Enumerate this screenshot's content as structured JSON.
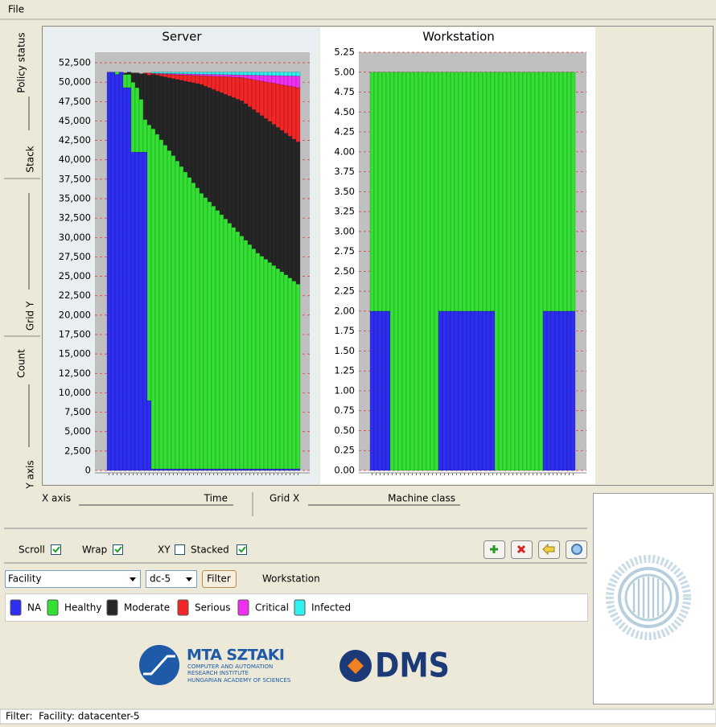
{
  "menu": [
    "File"
  ],
  "side_labels": [
    "Policy status",
    "Stack",
    "Grid Y",
    "Count",
    "Y axis"
  ],
  "controls": {
    "x_axis_label": "X axis",
    "x_axis_value": "Time",
    "grid_x_label": "Grid X",
    "grid_x_value": "Machine class",
    "checkboxes": [
      {
        "label": "Scroll",
        "checked": true
      },
      {
        "label": "Wrap",
        "checked": true
      },
      {
        "label": "XY",
        "checked": false
      },
      {
        "label": "Stacked",
        "checked": true
      }
    ],
    "selects": [
      "Facility",
      "dc-5"
    ],
    "button": "Filter",
    "selection": "Workstation"
  },
  "logos": {
    "mta": "MTA SZTAKI",
    "mta_lines": [
      "COMPUTER AND AUTOMATION",
      "RESEARCH INSTITUTE",
      "HUNGARIAN ACADEMY OF SCIENCES"
    ],
    "dms": "DMS"
  },
  "status": "Filter:  Facility: datacenter-5",
  "chart_data": [
    {
      "type": "bar",
      "stacked": true,
      "grid": true,
      "title": "Server",
      "categories": [
        null,
        null,
        null,
        null,
        null,
        null,
        null,
        null,
        null,
        null,
        null,
        null,
        null,
        null,
        null,
        null,
        null,
        null,
        null,
        null,
        null,
        null,
        null,
        null,
        null,
        null,
        null,
        null,
        null,
        null,
        null,
        null,
        null,
        null,
        null,
        null,
        null,
        null,
        null,
        null,
        null,
        null,
        null,
        null,
        null,
        null,
        null,
        null
      ],
      "ylim": [
        0,
        53850
      ],
      "yticks": [
        0,
        {
          "value": 2500,
          "label": "2,500"
        },
        {
          "value": 5000,
          "label": "5,000"
        },
        {
          "value": 7500,
          "label": "7,500"
        },
        {
          "value": 10000,
          "label": "10,000"
        },
        {
          "value": 12500,
          "label": "12,500"
        },
        {
          "value": 15000,
          "label": "15,000"
        },
        {
          "value": 17500,
          "label": "17,500"
        },
        {
          "value": 20000,
          "label": "20,000"
        },
        {
          "value": 22500,
          "label": "22,500"
        },
        {
          "value": 25000,
          "label": "25,000"
        },
        {
          "value": 27500,
          "label": "27,500"
        },
        {
          "value": 30000,
          "label": "30,000"
        },
        {
          "value": 32500,
          "label": "32,500"
        },
        {
          "value": 35000,
          "label": "35,000"
        },
        {
          "value": 37500,
          "label": "37,500"
        },
        {
          "value": 40000,
          "label": "40,000"
        },
        {
          "value": 42500,
          "label": "42,500"
        },
        {
          "value": 45000,
          "label": "45,000"
        },
        {
          "value": 47500,
          "label": "47,500"
        },
        {
          "value": 50000,
          "label": "50,000"
        },
        {
          "value": 52500,
          "label": "52,500"
        }
      ],
      "series": [
        {
          "name": "NA",
          "color": "#2e2ef2",
          "values": [
            51300,
            51300,
            51000,
            51300,
            49300,
            49300,
            41000,
            41000,
            41000,
            41000,
            9000,
            200,
            200,
            200,
            200,
            200,
            200,
            200,
            200,
            200,
            200,
            200,
            200,
            200,
            200,
            200,
            200,
            200,
            200,
            200,
            200,
            200,
            200,
            200,
            200,
            200,
            200,
            200,
            200,
            200,
            200,
            200,
            200,
            200,
            200,
            200,
            200,
            200
          ]
        },
        {
          "name": "Healthy",
          "color": "#33e033",
          "values": [
            0,
            0,
            300,
            0,
            1700,
            1700,
            9000,
            8300,
            6800,
            4200,
            35500,
            43800,
            43100,
            42400,
            41700,
            41000,
            40350,
            39650,
            38950,
            38250,
            37550,
            36850,
            36200,
            35500,
            34950,
            34400,
            33850,
            33300,
            32750,
            32200,
            31650,
            31100,
            30550,
            30000,
            29450,
            28900,
            28350,
            27800,
            27400,
            27000,
            26600,
            26200,
            25800,
            25400,
            25000,
            24600,
            24200,
            23800
          ]
        },
        {
          "name": "Moderate",
          "color": "#262626",
          "values": [
            0,
            0,
            0,
            0,
            200,
            300,
            1200,
            1900,
            3300,
            5900,
            6400,
            7000,
            7600,
            8180,
            8780,
            9370,
            9910,
            10500,
            11100,
            11690,
            12280,
            12870,
            13410,
            14000,
            14340,
            14680,
            15020,
            15360,
            15700,
            16040,
            16380,
            16720,
            17060,
            17400,
            17570,
            17740,
            17910,
            18080,
            18100,
            18120,
            18140,
            18160,
            18180,
            18200,
            18220,
            18240,
            18260,
            18300
          ]
        },
        {
          "name": "Serious",
          "color": "#f22626",
          "values": [
            0,
            0,
            0,
            0,
            0,
            0,
            0,
            0,
            0,
            100,
            300,
            100,
            180,
            270,
            350,
            440,
            530,
            610,
            690,
            780,
            870,
            950,
            1040,
            1130,
            1320,
            1500,
            1690,
            1880,
            2070,
            2250,
            2440,
            2630,
            2820,
            3000,
            3290,
            3570,
            3860,
            4150,
            4440,
            4720,
            5010,
            5300,
            5590,
            5870,
            6160,
            6450,
            6740,
            7000
          ]
        },
        {
          "name": "Critical",
          "color": "#f030f0",
          "values": [
            0,
            0,
            0,
            0,
            0,
            0,
            0,
            0,
            0,
            0,
            0,
            50,
            60,
            80,
            90,
            100,
            110,
            130,
            140,
            150,
            160,
            180,
            190,
            200,
            210,
            230,
            240,
            250,
            260,
            280,
            290,
            300,
            310,
            330,
            410,
            500,
            580,
            660,
            740,
            830,
            910,
            990,
            1070,
            1160,
            1240,
            1320,
            1400,
            1490
          ]
        },
        {
          "name": "Infected",
          "color": "#30f0f0",
          "values": [
            0,
            0,
            0,
            0,
            0,
            0,
            0,
            0,
            0,
            0,
            0,
            150,
            160,
            170,
            180,
            190,
            200,
            210,
            220,
            230,
            240,
            250,
            260,
            270,
            280,
            290,
            300,
            310,
            320,
            330,
            340,
            350,
            360,
            370,
            380,
            390,
            400,
            410,
            420,
            430,
            440,
            450,
            460,
            470,
            480,
            490,
            500,
            510
          ]
        }
      ]
    },
    {
      "type": "bar",
      "stacked": true,
      "grid": true,
      "title": "Workstation",
      "categories": [
        null,
        null,
        null,
        null,
        null,
        null,
        null,
        null,
        null,
        null,
        null,
        null,
        null,
        null,
        null,
        null,
        null,
        null,
        null,
        null,
        null,
        null,
        null,
        null,
        null,
        null,
        null,
        null,
        null,
        null,
        null,
        null,
        null,
        null,
        null,
        null,
        null,
        null,
        null,
        null,
        null,
        null,
        null,
        null,
        null,
        null,
        null,
        null,
        null,
        null,
        null
      ],
      "ylim": [
        0,
        5.25
      ],
      "yticks": [
        {
          "value": 0,
          "label": "0.00"
        },
        {
          "value": 0.25,
          "label": "0.25"
        },
        {
          "value": 0.5,
          "label": "0.50"
        },
        {
          "value": 0.75,
          "label": "0.75"
        },
        {
          "value": 1,
          "label": "1.00"
        },
        {
          "value": 1.25,
          "label": "1.25"
        },
        {
          "value": 1.5,
          "label": "1.50"
        },
        {
          "value": 1.75,
          "label": "1.75"
        },
        {
          "value": 2,
          "label": "2.00"
        },
        {
          "value": 2.25,
          "label": "2.25"
        },
        {
          "value": 2.5,
          "label": "2.50"
        },
        {
          "value": 2.75,
          "label": "2.75"
        },
        {
          "value": 3,
          "label": "3.00"
        },
        {
          "value": 3.25,
          "label": "3.25"
        },
        {
          "value": 3.5,
          "label": "3.50"
        },
        {
          "value": 3.75,
          "label": "3.75"
        },
        {
          "value": 4,
          "label": "4.00"
        },
        {
          "value": 4.25,
          "label": "4.25"
        },
        {
          "value": 4.5,
          "label": "4.50"
        },
        {
          "value": 4.75,
          "label": "4.75"
        },
        {
          "value": 5,
          "label": "5.00"
        },
        {
          "value": 5.25,
          "label": "5.25"
        }
      ],
      "series": [
        {
          "name": "NA",
          "color": "#2e2ef2",
          "values": [
            2,
            2,
            2,
            2,
            2,
            0,
            0,
            0,
            0,
            0,
            0,
            0,
            0,
            0,
            0,
            0,
            0,
            2,
            2,
            2,
            2,
            2,
            2,
            2,
            2,
            2,
            2,
            2,
            2,
            2,
            2,
            0,
            0,
            0,
            0,
            0,
            0,
            0,
            0,
            0,
            0,
            0,
            0,
            2,
            2,
            2,
            2,
            2,
            2,
            2,
            2
          ]
        },
        {
          "name": "Healthy",
          "color": "#33e033",
          "values": [
            3,
            3,
            3,
            3,
            3,
            5,
            5,
            5,
            5,
            5,
            5,
            5,
            5,
            5,
            5,
            5,
            5,
            3,
            3,
            3,
            3,
            3,
            3,
            3,
            3,
            3,
            3,
            3,
            3,
            3,
            3,
            5,
            5,
            5,
            5,
            5,
            5,
            5,
            5,
            5,
            5,
            5,
            5,
            3,
            3,
            3,
            3,
            3,
            3,
            3,
            3
          ]
        }
      ]
    }
  ]
}
